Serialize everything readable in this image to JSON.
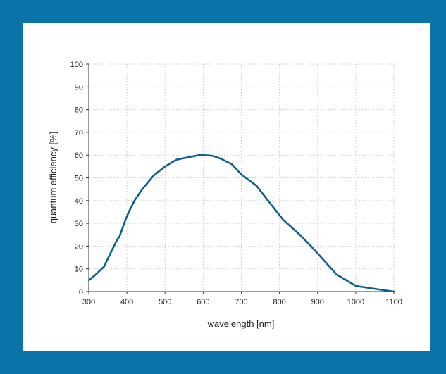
{
  "colors": {
    "border": "#0a73a8",
    "background": "#ffffff",
    "line": "#0d5f8c",
    "grid": "#c8c8c8",
    "axis": "#333333"
  },
  "chart_data": {
    "type": "line",
    "title": "",
    "xlabel": "wavelength [nm]",
    "ylabel": "quantum efficiency [%]",
    "xlim": [
      300,
      1100
    ],
    "ylim": [
      0,
      100
    ],
    "xticks": [
      300,
      400,
      500,
      600,
      700,
      800,
      900,
      1000,
      1100
    ],
    "yticks": [
      0,
      10,
      20,
      30,
      40,
      50,
      60,
      70,
      80,
      90,
      100
    ],
    "grid": true,
    "grid_style": "dotted",
    "series": [
      {
        "x": [
          300,
          315,
          340,
          360,
          375,
          380,
          395,
          405,
          420,
          440,
          470,
          500,
          530,
          560,
          590,
          600,
          625,
          645,
          675,
          700,
          740,
          770,
          810,
          850,
          880,
          915,
          950,
          1000,
          1050,
          1100
        ],
        "y": [
          5,
          7,
          11,
          18,
          23,
          24,
          31,
          35,
          40,
          45,
          51,
          55,
          58,
          59,
          60,
          60,
          59.7,
          58.5,
          56,
          51.5,
          46.5,
          40,
          31.5,
          25.5,
          20.5,
          14,
          7.5,
          2.5,
          1.2,
          0
        ]
      }
    ]
  }
}
